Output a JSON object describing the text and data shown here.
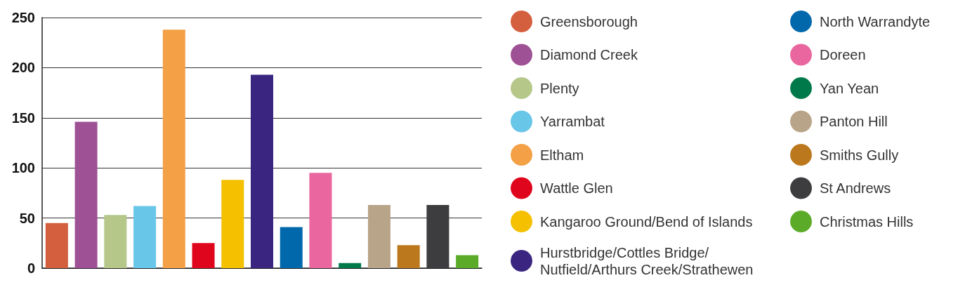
{
  "chart_data": {
    "type": "bar",
    "categories": [
      null,
      null,
      null,
      null,
      null,
      null,
      null,
      null,
      null,
      null,
      null,
      null,
      null,
      null,
      null
    ],
    "series": [
      {
        "name": "Greensborough",
        "color": "#d45f3f",
        "values": [
          45,
          null,
          null,
          null,
          null,
          null,
          null,
          null,
          null,
          null,
          null,
          null,
          null,
          null,
          null
        ]
      },
      {
        "name": "Diamond Creek",
        "color": "#9e5194",
        "values": [
          null,
          146,
          null,
          null,
          null,
          null,
          null,
          null,
          null,
          null,
          null,
          null,
          null,
          null,
          null
        ]
      },
      {
        "name": "Plenty",
        "color": "#b5c789",
        "values": [
          null,
          null,
          53,
          null,
          null,
          null,
          null,
          null,
          null,
          null,
          null,
          null,
          null,
          null,
          null
        ]
      },
      {
        "name": "Yarrambat",
        "color": "#68c6e8",
        "values": [
          null,
          null,
          null,
          62,
          null,
          null,
          null,
          null,
          null,
          null,
          null,
          null,
          null,
          null,
          null
        ]
      },
      {
        "name": "Eltham",
        "color": "#f3a046",
        "values": [
          null,
          null,
          null,
          null,
          238,
          null,
          null,
          null,
          null,
          null,
          null,
          null,
          null,
          null,
          null
        ]
      },
      {
        "name": "Wattle Glen",
        "color": "#df051d",
        "values": [
          null,
          null,
          null,
          null,
          null,
          25,
          null,
          null,
          null,
          null,
          null,
          null,
          null,
          null,
          null
        ]
      },
      {
        "name": "Kangaroo Ground/Bend of Islands",
        "color": "#f4c000",
        "values": [
          null,
          null,
          null,
          null,
          null,
          null,
          88,
          null,
          null,
          null,
          null,
          null,
          null,
          null,
          null
        ]
      },
      {
        "name": "Hurstbridge/Cottles Bridge/Nutfield/Arthurs Creek/Strathewen",
        "color": "#3a2680",
        "values": [
          null,
          null,
          null,
          null,
          null,
          null,
          null,
          193,
          null,
          null,
          null,
          null,
          null,
          null,
          null
        ]
      },
      {
        "name": "North Warrandyte",
        "color": "#0168ac",
        "values": [
          null,
          null,
          null,
          null,
          null,
          null,
          null,
          null,
          41,
          null,
          null,
          null,
          null,
          null,
          null
        ]
      },
      {
        "name": "Doreen",
        "color": "#e9669e",
        "values": [
          null,
          null,
          null,
          null,
          null,
          null,
          null,
          null,
          null,
          95,
          null,
          null,
          null,
          null,
          null
        ]
      },
      {
        "name": "Yan Yean",
        "color": "#00794a",
        "values": [
          null,
          null,
          null,
          null,
          null,
          null,
          null,
          null,
          null,
          null,
          5,
          null,
          null,
          null,
          null
        ]
      },
      {
        "name": "Panton Hill",
        "color": "#b8a488",
        "values": [
          null,
          null,
          null,
          null,
          null,
          null,
          null,
          null,
          null,
          null,
          null,
          63,
          null,
          null,
          null
        ]
      },
      {
        "name": "Smiths Gully",
        "color": "#bb781d",
        "values": [
          null,
          null,
          null,
          null,
          null,
          null,
          null,
          null,
          null,
          null,
          null,
          null,
          23,
          null,
          null
        ]
      },
      {
        "name": "St Andrews",
        "color": "#3d3d3f",
        "values": [
          null,
          null,
          null,
          null,
          null,
          null,
          null,
          null,
          null,
          null,
          null,
          null,
          null,
          63,
          null
        ]
      },
      {
        "name": "Christmas Hills",
        "color": "#5bab29",
        "values": [
          null,
          null,
          null,
          null,
          null,
          null,
          null,
          null,
          null,
          null,
          null,
          null,
          null,
          null,
          13
        ]
      }
    ],
    "ylim": [
      0,
      250
    ],
    "yticks": [
      0,
      50,
      100,
      150,
      200,
      250
    ],
    "grid": "y",
    "legend": "right",
    "tick_labels": "y"
  }
}
